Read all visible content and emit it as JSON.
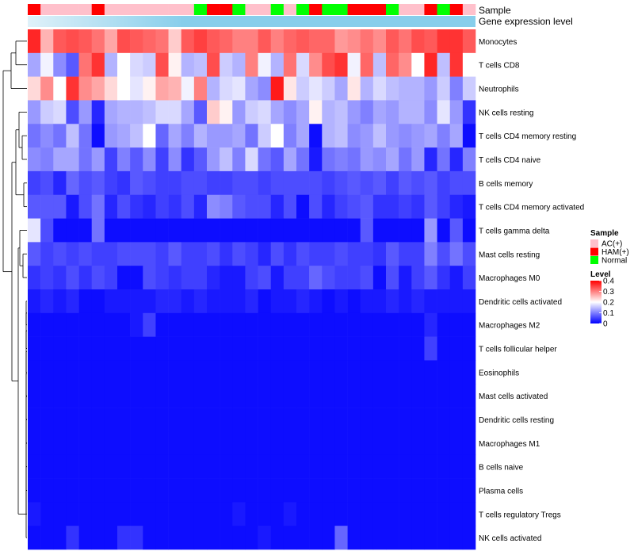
{
  "chart_data": {
    "type": "heatmap",
    "annotation_labels": {
      "sample": "Sample",
      "gene_expression": "Gene expression level"
    },
    "rows": [
      "Monocytes",
      "T cells CD8",
      "Neutrophils",
      "NK cells resting",
      "T cells CD4 memory resting",
      "T cells CD4 naive",
      "B cells memory",
      "T cells CD4 memory activated",
      "T cells gamma delta",
      "Mast cells resting",
      "Macrophages M0",
      "Dendritic cells activated",
      "Macrophages M2",
      "T cells follicular helper",
      "Eosinophils",
      "Mast cells activated",
      "Dendritic cells resting",
      "Macrophages M1",
      "B cells naive",
      "Plasma cells",
      "T cells regulatory  Tregs",
      "NK cells activated"
    ],
    "sample_groups": [
      "H",
      "A",
      "A",
      "A",
      "A",
      "H",
      "A",
      "A",
      "A",
      "A",
      "A",
      "A",
      "A",
      "N",
      "H",
      "H",
      "N",
      "A",
      "A",
      "N",
      "A",
      "N",
      "H",
      "N",
      "N",
      "H",
      "H",
      "H",
      "N",
      "A",
      "A",
      "H",
      "N",
      "H",
      "A"
    ],
    "values": [
      [
        0.37,
        0.26,
        0.33,
        0.34,
        0.33,
        0.31,
        0.27,
        0.34,
        0.33,
        0.32,
        0.31,
        0.24,
        0.33,
        0.35,
        0.33,
        0.32,
        0.3,
        0.3,
        0.33,
        0.3,
        0.32,
        0.33,
        0.32,
        0.32,
        0.28,
        0.29,
        0.31,
        0.29,
        0.33,
        0.31,
        0.34,
        0.33,
        0.36,
        0.36,
        0.33
      ],
      [
        0.13,
        0.19,
        0.11,
        0.07,
        0.31,
        0.36,
        0.14,
        0.2,
        0.17,
        0.16,
        0.34,
        0.21,
        0.14,
        0.15,
        0.34,
        0.16,
        0.14,
        0.3,
        0.19,
        0.14,
        0.31,
        0.17,
        0.29,
        0.34,
        0.36,
        0.19,
        0.32,
        0.15,
        0.32,
        0.29,
        0.2,
        0.37,
        0.15,
        0.36,
        0.2
      ],
      [
        0.23,
        0.29,
        0.2,
        0.36,
        0.29,
        0.27,
        0.23,
        0.2,
        0.18,
        0.21,
        0.27,
        0.26,
        0.19,
        0.3,
        0.14,
        0.17,
        0.18,
        0.13,
        0.11,
        0.38,
        0.22,
        0.16,
        0.18,
        0.16,
        0.13,
        0.22,
        0.14,
        0.17,
        0.15,
        0.14,
        0.14,
        0.12,
        0.16,
        0.1,
        0.16
      ],
      [
        0.12,
        0.16,
        0.17,
        0.06,
        0.12,
        0.03,
        0.13,
        0.14,
        0.14,
        0.15,
        0.17,
        0.17,
        0.13,
        0.07,
        0.24,
        0.21,
        0.12,
        0.16,
        0.17,
        0.13,
        0.11,
        0.13,
        0.21,
        0.14,
        0.15,
        0.12,
        0.1,
        0.13,
        0.12,
        0.14,
        0.14,
        0.11,
        0.18,
        0.12,
        0.04
      ],
      [
        0.09,
        0.11,
        0.09,
        0.15,
        0.09,
        0.01,
        0.12,
        0.13,
        0.15,
        0.2,
        0.08,
        0.13,
        0.1,
        0.14,
        0.12,
        0.12,
        0.13,
        0.09,
        0.16,
        0.2,
        0.1,
        0.13,
        0.01,
        0.14,
        0.15,
        0.11,
        0.12,
        0.15,
        0.12,
        0.11,
        0.12,
        0.13,
        0.1,
        0.13,
        0.01
      ],
      [
        0.11,
        0.1,
        0.13,
        0.13,
        0.09,
        0.12,
        0.05,
        0.1,
        0.07,
        0.11,
        0.05,
        0.11,
        0.04,
        0.07,
        0.12,
        0.15,
        0.1,
        0.17,
        0.09,
        0.07,
        0.13,
        0.09,
        0.02,
        0.09,
        0.1,
        0.09,
        0.12,
        0.11,
        0.13,
        0.09,
        0.12,
        0.03,
        0.09,
        0.03,
        0.1
      ],
      [
        0.05,
        0.06,
        0.03,
        0.08,
        0.06,
        0.07,
        0.05,
        0.04,
        0.07,
        0.06,
        0.05,
        0.05,
        0.06,
        0.06,
        0.05,
        0.05,
        0.06,
        0.06,
        0.05,
        0.06,
        0.06,
        0.06,
        0.06,
        0.05,
        0.06,
        0.07,
        0.06,
        0.07,
        0.05,
        0.07,
        0.06,
        0.07,
        0.05,
        0.06,
        0.06
      ],
      [
        0.07,
        0.07,
        0.07,
        0.02,
        0.06,
        0.09,
        0.03,
        0.06,
        0.04,
        0.03,
        0.05,
        0.04,
        0.06,
        0.03,
        0.11,
        0.1,
        0.07,
        0.06,
        0.06,
        0.03,
        0.06,
        0.01,
        0.06,
        0.03,
        0.05,
        0.06,
        0.07,
        0.04,
        0.04,
        0.05,
        0.04,
        0.07,
        0.05,
        0.03,
        0.02
      ],
      [
        0.18,
        0.06,
        0.01,
        0.01,
        0.01,
        0.09,
        0.01,
        0.01,
        0.01,
        0.01,
        0.01,
        0.01,
        0.01,
        0.01,
        0.01,
        0.01,
        0.01,
        0.01,
        0.01,
        0.01,
        0.01,
        0.01,
        0.01,
        0.01,
        0.01,
        0.01,
        0.07,
        0.01,
        0.01,
        0.01,
        0.01,
        0.12,
        0.01,
        0.07,
        0.01
      ],
      [
        0.07,
        0.05,
        0.06,
        0.05,
        0.06,
        0.05,
        0.05,
        0.06,
        0.06,
        0.06,
        0.05,
        0.07,
        0.05,
        0.05,
        0.06,
        0.04,
        0.06,
        0.05,
        0.03,
        0.06,
        0.04,
        0.06,
        0.05,
        0.05,
        0.06,
        0.05,
        0.05,
        0.04,
        0.07,
        0.05,
        0.05,
        0.1,
        0.06,
        0.09,
        0.06
      ],
      [
        0.04,
        0.05,
        0.04,
        0.06,
        0.04,
        0.06,
        0.05,
        0.01,
        0.01,
        0.06,
        0.05,
        0.04,
        0.05,
        0.05,
        0.03,
        0.02,
        0.02,
        0.05,
        0.06,
        0.02,
        0.05,
        0.05,
        0.08,
        0.06,
        0.05,
        0.05,
        0.06,
        0.01,
        0.06,
        0.02,
        0.05,
        0.07,
        0.04,
        0.02,
        0.05
      ],
      [
        0.02,
        0.03,
        0.02,
        0.03,
        0.01,
        0.01,
        0.02,
        0.02,
        0.02,
        0.02,
        0.03,
        0.03,
        0.02,
        0.03,
        0.02,
        0.02,
        0.02,
        0.03,
        0.01,
        0.02,
        0.02,
        0.03,
        0.02,
        0.01,
        0.02,
        0.01,
        0.02,
        0.02,
        0.03,
        0.02,
        0.03,
        0.02,
        0.02,
        0.02,
        0.02
      ],
      [
        0.01,
        0.01,
        0.01,
        0.01,
        0.01,
        0.01,
        0.01,
        0.01,
        0.02,
        0.05,
        0.01,
        0.01,
        0.01,
        0.01,
        0.01,
        0.01,
        0.01,
        0.01,
        0.01,
        0.01,
        0.01,
        0.01,
        0.01,
        0.01,
        0.01,
        0.01,
        0.01,
        0.01,
        0.01,
        0.01,
        0.01,
        0.03,
        0.01,
        0.01,
        0.01
      ],
      [
        0.01,
        0.01,
        0.01,
        0.01,
        0.01,
        0.01,
        0.01,
        0.01,
        0.01,
        0.01,
        0.01,
        0.01,
        0.01,
        0.01,
        0.01,
        0.01,
        0.01,
        0.01,
        0.01,
        0.01,
        0.01,
        0.01,
        0.01,
        0.01,
        0.01,
        0.01,
        0.01,
        0.01,
        0.01,
        0.01,
        0.01,
        0.05,
        0.01,
        0.01,
        0.01
      ],
      [
        0.01,
        0.01,
        0.01,
        0.01,
        0.01,
        0.01,
        0.01,
        0.01,
        0.01,
        0.01,
        0.01,
        0.01,
        0.01,
        0.01,
        0.01,
        0.01,
        0.01,
        0.01,
        0.01,
        0.01,
        0.01,
        0.01,
        0.01,
        0.01,
        0.01,
        0.01,
        0.01,
        0.01,
        0.01,
        0.01,
        0.01,
        0.01,
        0.01,
        0.01,
        0.01
      ],
      [
        0.01,
        0.01,
        0.01,
        0.01,
        0.01,
        0.01,
        0.01,
        0.01,
        0.01,
        0.01,
        0.01,
        0.01,
        0.01,
        0.01,
        0.01,
        0.01,
        0.01,
        0.01,
        0.01,
        0.01,
        0.01,
        0.01,
        0.01,
        0.01,
        0.01,
        0.01,
        0.01,
        0.01,
        0.01,
        0.01,
        0.01,
        0.01,
        0.01,
        0.01,
        0.01
      ],
      [
        0.01,
        0.01,
        0.01,
        0.01,
        0.01,
        0.01,
        0.01,
        0.01,
        0.01,
        0.01,
        0.01,
        0.01,
        0.01,
        0.01,
        0.01,
        0.01,
        0.01,
        0.01,
        0.01,
        0.01,
        0.01,
        0.01,
        0.01,
        0.01,
        0.01,
        0.01,
        0.01,
        0.01,
        0.01,
        0.01,
        0.01,
        0.01,
        0.01,
        0.01,
        0.01
      ],
      [
        0.01,
        0.01,
        0.01,
        0.01,
        0.01,
        0.01,
        0.01,
        0.01,
        0.01,
        0.01,
        0.01,
        0.01,
        0.01,
        0.01,
        0.01,
        0.01,
        0.01,
        0.01,
        0.01,
        0.01,
        0.01,
        0.01,
        0.01,
        0.01,
        0.01,
        0.01,
        0.01,
        0.01,
        0.01,
        0.01,
        0.01,
        0.01,
        0.01,
        0.01,
        0.01
      ],
      [
        0.01,
        0.01,
        0.01,
        0.01,
        0.01,
        0.01,
        0.01,
        0.01,
        0.01,
        0.01,
        0.01,
        0.01,
        0.01,
        0.01,
        0.01,
        0.01,
        0.01,
        0.01,
        0.01,
        0.01,
        0.01,
        0.01,
        0.01,
        0.01,
        0.01,
        0.01,
        0.01,
        0.01,
        0.01,
        0.01,
        0.01,
        0.01,
        0.01,
        0.01,
        0.01
      ],
      [
        0.01,
        0.01,
        0.01,
        0.01,
        0.01,
        0.01,
        0.01,
        0.01,
        0.01,
        0.01,
        0.01,
        0.01,
        0.01,
        0.01,
        0.01,
        0.01,
        0.01,
        0.01,
        0.01,
        0.01,
        0.01,
        0.01,
        0.01,
        0.01,
        0.01,
        0.01,
        0.01,
        0.01,
        0.01,
        0.01,
        0.01,
        0.01,
        0.01,
        0.01,
        0.01
      ],
      [
        0.02,
        0.01,
        0.01,
        0.01,
        0.01,
        0.01,
        0.01,
        0.01,
        0.01,
        0.01,
        0.01,
        0.01,
        0.01,
        0.01,
        0.01,
        0.01,
        0.02,
        0.01,
        0.01,
        0.01,
        0.02,
        0.01,
        0.01,
        0.01,
        0.01,
        0.01,
        0.01,
        0.01,
        0.01,
        0.01,
        0.01,
        0.01,
        0.01,
        0.01,
        0.01
      ],
      [
        0.01,
        0.01,
        0.01,
        0.04,
        0.01,
        0.01,
        0.01,
        0.04,
        0.04,
        0.01,
        0.01,
        0.01,
        0.01,
        0.01,
        0.01,
        0.01,
        0.01,
        0.01,
        0.02,
        0.01,
        0.01,
        0.01,
        0.01,
        0.01,
        0.08,
        0.01,
        0.01,
        0.01,
        0.01,
        0.01,
        0.01,
        0.01,
        0.01,
        0.01,
        0.01
      ]
    ],
    "legend": {
      "sample_title": "Sample",
      "sample_items": [
        {
          "key": "A",
          "label": "AC(+)",
          "color": "#ffc0cb"
        },
        {
          "key": "H",
          "label": "HAM(+)",
          "color": "#ff0000"
        },
        {
          "key": "N",
          "label": "Normal",
          "color": "#00ff00"
        }
      ],
      "level_title": "Level",
      "level_ticks": [
        "0.4",
        "0.3",
        "0.2",
        "0.1",
        "0"
      ],
      "level_range": [
        0,
        0.4
      ],
      "placement": "right"
    },
    "colors": {
      "low": "#0000ff",
      "mid": "#ffffff",
      "high": "#ff0000",
      "gene_bar": "#87ceeb",
      "gene_bar_light": "#dff1f9"
    }
  }
}
